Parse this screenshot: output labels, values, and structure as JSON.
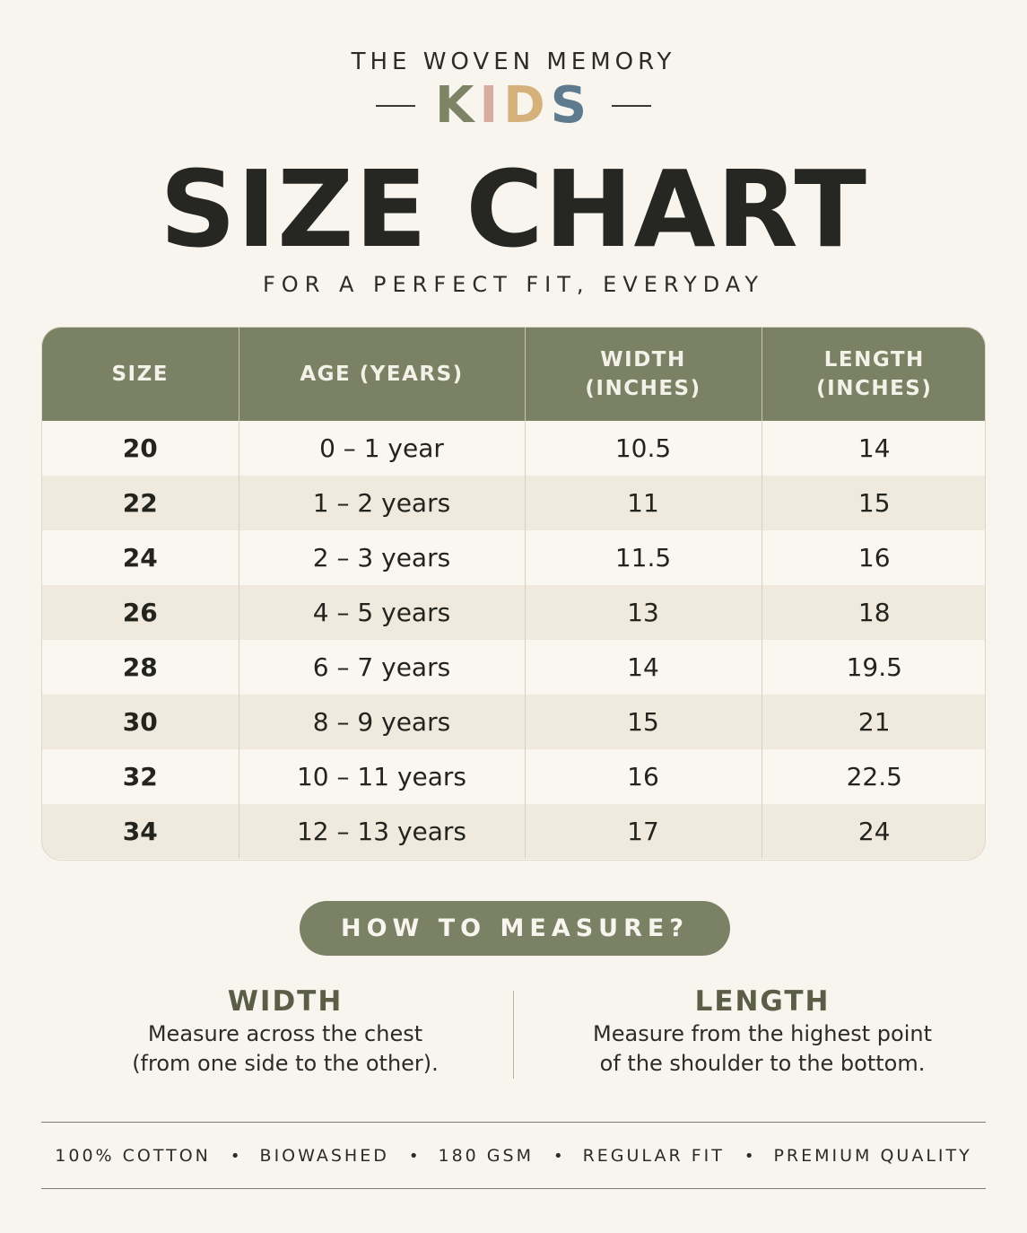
{
  "brand": {
    "name": "THE WOVEN MEMORY",
    "sub_letters": [
      "K",
      "I",
      "D",
      "S"
    ]
  },
  "title": "SIZE CHART",
  "subtitle": "FOR A PERFECT FIT, EVERYDAY",
  "table": {
    "headers": [
      "SIZE",
      "AGE (YEARS)",
      "WIDTH\n(INCHES)",
      "LENGTH\n(INCHES)"
    ],
    "rows": [
      [
        "20",
        "0 – 1 year",
        "10.5",
        "14"
      ],
      [
        "22",
        "1 – 2 years",
        "11",
        "15"
      ],
      [
        "24",
        "2 – 3 years",
        "11.5",
        "16"
      ],
      [
        "26",
        "4 – 5 years",
        "13",
        "18"
      ],
      [
        "28",
        "6 – 7 years",
        "14",
        "19.5"
      ],
      [
        "30",
        "8 – 9 years",
        "15",
        "21"
      ],
      [
        "32",
        "10 – 11 years",
        "16",
        "22.5"
      ],
      [
        "34",
        "12 – 13 years",
        "17",
        "24"
      ]
    ]
  },
  "how_to": {
    "label": "HOW TO MEASURE?",
    "width": {
      "title": "WIDTH",
      "line1": "Measure across the chest",
      "line2": "(from one side to the other)."
    },
    "length": {
      "title": "LENGTH",
      "line1": "Measure from the highest point",
      "line2": "of the shoulder to the bottom."
    }
  },
  "features": [
    "100% COTTON",
    "BIOWASHED",
    "180 GSM",
    "REGULAR FIT",
    "PREMIUM QUALITY"
  ],
  "colors": {
    "background": "#f8f5ef",
    "accent_green": "#7b8165",
    "kids_k": "#7d8466",
    "kids_i": "#d9aca2",
    "kids_d": "#d5b27c",
    "kids_s": "#5d7a8e"
  }
}
